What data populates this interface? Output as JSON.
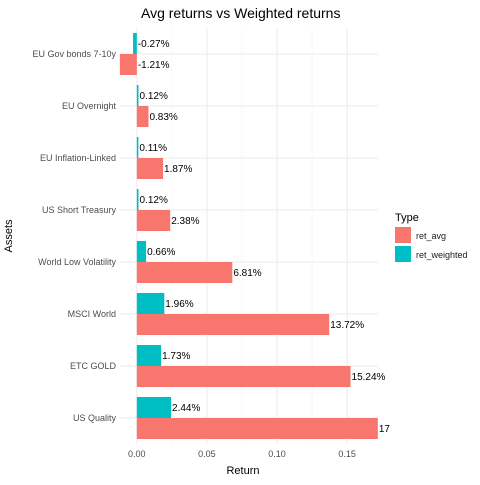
{
  "chart_data": {
    "type": "bar",
    "orientation": "horizontal",
    "title": "Avg returns vs Weighted returns",
    "xlabel": "Return",
    "ylabel": "Assets",
    "xlim": [
      -0.012,
      0.172
    ],
    "xticks": [
      0.0,
      0.05,
      0.1,
      0.15
    ],
    "xtick_labels": [
      "0.00",
      "0.05",
      "0.10",
      "0.15"
    ],
    "grid": true,
    "legend": {
      "title": "Type",
      "position": "right"
    },
    "categories": [
      "EU Gov bonds 7-10y",
      "EU Overnight",
      "EU Inflation-Linked",
      "US Short Treasury",
      "World Low Volatility",
      "MSCI World",
      "ETC GOLD",
      "US Quality"
    ],
    "series": [
      {
        "name": "ret_avg",
        "color": "#F8766D",
        "values": [
          -0.0121,
          0.0083,
          0.0187,
          0.0238,
          0.0681,
          0.1372,
          0.1524,
          0.1719
        ],
        "labels": [
          "-1.21%",
          "0.83%",
          "1.87%",
          "2.38%",
          "6.81%",
          "13.72%",
          "15.24%",
          "17"
        ]
      },
      {
        "name": "ret_weighted",
        "color": "#00BFC4",
        "values": [
          -0.0027,
          0.0012,
          0.0011,
          0.0012,
          0.0066,
          0.0196,
          0.0173,
          0.0244
        ],
        "labels": [
          "-0.27%",
          "0.12%",
          "0.11%",
          "0.12%",
          "0.66%",
          "1.96%",
          "1.73%",
          "2.44%"
        ]
      }
    ]
  }
}
